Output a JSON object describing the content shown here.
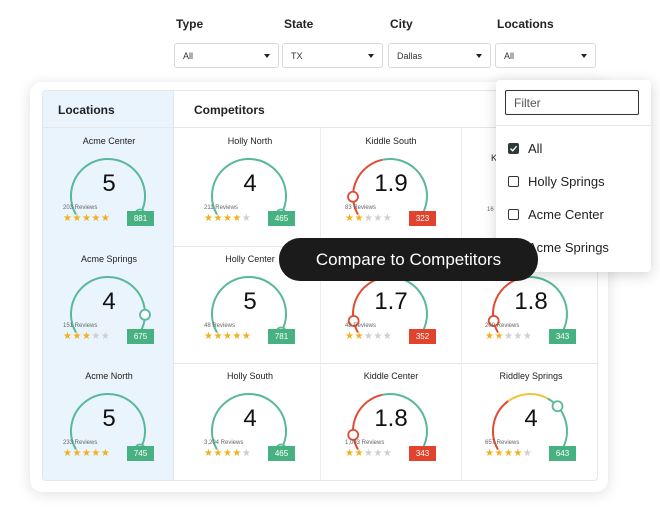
{
  "filters": {
    "type": {
      "label": "Type",
      "value": "All"
    },
    "state": {
      "label": "State",
      "value": "TX"
    },
    "city": {
      "label": "City",
      "value": "Dallas"
    },
    "locations": {
      "label": "Locations",
      "value": "All"
    }
  },
  "headers": {
    "locations": "Locations",
    "competitors": "Competitors"
  },
  "colors": {
    "green": "#58b89a",
    "red": "#e24a32",
    "yellow": "#f0c43a",
    "badge_green": "#47b181",
    "badge_red": "#e2432c",
    "star": "#f2b01e"
  },
  "cells": [
    {
      "name": "Acme Center",
      "score": "5",
      "reviews": "203 Reviews",
      "stars": 5,
      "badge": "881",
      "badge_color": "green",
      "arc": "green",
      "dot": 1.0
    },
    {
      "name": "Holly North",
      "score": "4",
      "reviews": "211 Reviews",
      "stars": 4,
      "badge": "465",
      "badge_color": "green",
      "arc": "green",
      "dot": 1.0
    },
    {
      "name": "Kiddle South",
      "score": "1.9",
      "reviews": "83 Reviews",
      "stars": 2,
      "badge": "323",
      "badge_color": "red",
      "arc": "red-green",
      "dot": 0.12
    },
    {
      "name": "Acme Springs",
      "score": "4",
      "reviews": "151 Reviews",
      "stars": 3,
      "badge": "675",
      "badge_color": "green",
      "arc": "green",
      "dot": 0.88
    },
    {
      "name": "Holly Center",
      "score": "5",
      "reviews": "48 Reviews",
      "stars": 5,
      "badge": "781",
      "badge_color": "green",
      "arc": "green",
      "dot": 1.0
    },
    {
      "name": "",
      "score": "1.7",
      "reviews": "48 Reviews",
      "stars": 2,
      "badge": "352",
      "badge_color": "red",
      "arc": "red-green",
      "dot": 0.08
    },
    {
      "name": "",
      "score": "1.8",
      "reviews": "209 Reviews",
      "stars": 2,
      "badge": "343",
      "badge_color": "green",
      "arc": "red-green",
      "dot": 0.08
    },
    {
      "name": "Acme North",
      "score": "5",
      "reviews": "233 Reviews",
      "stars": 5,
      "badge": "745",
      "badge_color": "green",
      "arc": "green",
      "dot": 1.0
    },
    {
      "name": "Holly South",
      "score": "4",
      "reviews": "3,204 Reviews",
      "stars": 4,
      "badge": "465",
      "badge_color": "green",
      "arc": "green",
      "dot": 1.0
    },
    {
      "name": "Kiddle Center",
      "score": "1.8",
      "reviews": "1,093 Reviews",
      "stars": 2,
      "badge": "343",
      "badge_color": "red",
      "arc": "red-green",
      "dot": 0.1
    },
    {
      "name": "Riddley Springs",
      "score": "4",
      "reviews": "657 Reviews",
      "stars": 4,
      "badge": "643",
      "badge_color": "green",
      "arc": "red-yellow-green",
      "dot": 0.7
    }
  ],
  "dropdown": {
    "placeholder": "Filter",
    "options": [
      {
        "label": "All",
        "checked": true
      },
      {
        "label": "Holly Springs",
        "checked": false
      },
      {
        "label": "Acme Center",
        "checked": false
      },
      {
        "label": "Acme Springs",
        "checked": false
      }
    ]
  },
  "tooltip": "Compare to Competitors",
  "partial_labels": {
    "row1_col4": "K",
    "row1_col4_reviews": "16"
  }
}
